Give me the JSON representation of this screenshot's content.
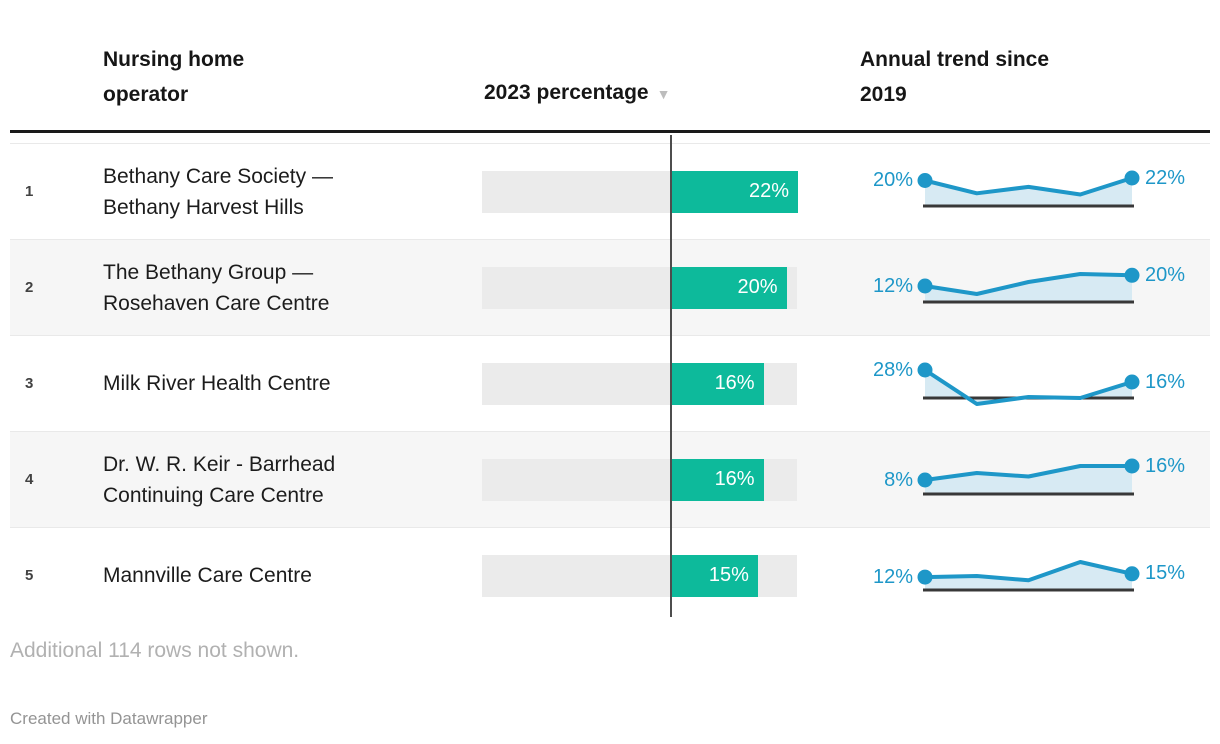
{
  "header": {
    "col_operator": "Nursing home operator",
    "col_percentage": "2023 percentage",
    "sort_icon": "▼",
    "col_trend": "Annual trend since 2019"
  },
  "rows": [
    {
      "rank": "1",
      "name": "Bethany Care Society — Bethany Harvest Hills",
      "bar_label": "22%",
      "trend_start_label": "20%",
      "trend_end_label": "22%"
    },
    {
      "rank": "2",
      "name": "The Bethany Group — Rosehaven Care Centre",
      "bar_label": "20%",
      "trend_start_label": "12%",
      "trend_end_label": "20%"
    },
    {
      "rank": "3",
      "name": "Milk River Health Centre",
      "bar_label": "16%",
      "trend_start_label": "28%",
      "trend_end_label": "16%"
    },
    {
      "rank": "4",
      "name": "Dr. W. R. Keir - Barrhead Continuing Care Centre",
      "bar_label": "16%",
      "trend_start_label": "8%",
      "trend_end_label": "16%"
    },
    {
      "rank": "5",
      "name": "Mannville Care Centre",
      "bar_label": "15%",
      "trend_start_label": "12%",
      "trend_end_label": "15%"
    }
  ],
  "chart_data": {
    "type": "table",
    "columns": [
      "Nursing home operator",
      "2023 percentage",
      "Annual trend since 2019"
    ],
    "sort": {
      "column": "2023 percentage",
      "direction": "desc"
    },
    "bar_axis": {
      "zero_line": true,
      "bar_max": 22
    },
    "trend_years": [
      2019,
      2020,
      2021,
      2022,
      2023
    ],
    "rows": [
      {
        "rank": 1,
        "operator": "Bethany Care Society — Bethany Harvest Hills",
        "percentage_2023": 22,
        "trend_values": [
          20,
          10,
          15,
          9,
          22
        ],
        "trend_start": 20,
        "trend_end": 22
      },
      {
        "rank": 2,
        "operator": "The Bethany Group — Rosehaven Care Centre",
        "percentage_2023": 20,
        "trend_values": [
          12,
          6,
          15,
          21,
          20
        ],
        "trend_start": 12,
        "trend_end": 20
      },
      {
        "rank": 3,
        "operator": "Milk River Health Centre",
        "percentage_2023": 16,
        "trend_values": [
          28,
          -6,
          1,
          0,
          16
        ],
        "trend_start": 28,
        "trend_end": 16
      },
      {
        "rank": 4,
        "operator": "Dr. W. R. Keir - Barrhead Continuing Care Centre",
        "percentage_2023": 16,
        "trend_values": [
          8,
          12,
          10,
          16,
          16
        ],
        "trend_start": 8,
        "trend_end": 16
      },
      {
        "rank": 5,
        "operator": "Mannville Care Centre",
        "percentage_2023": 15,
        "trend_values": [
          12,
          13,
          9,
          26,
          15
        ],
        "trend_start": 12,
        "trend_end": 15
      }
    ],
    "note": "Additional 114 rows not shown."
  },
  "footer": {
    "note": "Additional 114 rows not shown.",
    "credit": "Created with Datawrapper"
  },
  "colors": {
    "bar_green": "#0dba9b",
    "bar_track": "#ebebeb",
    "spark_blue": "#1e97c8",
    "spark_fill": "#d7eaf3",
    "spark_baseline": "#383838",
    "zero_line": "#4d4d4d",
    "alt_row_bg": "#f6f6f6",
    "header_rule": "#1a1a1a",
    "sort_icon_color": "#bdbdbd"
  }
}
